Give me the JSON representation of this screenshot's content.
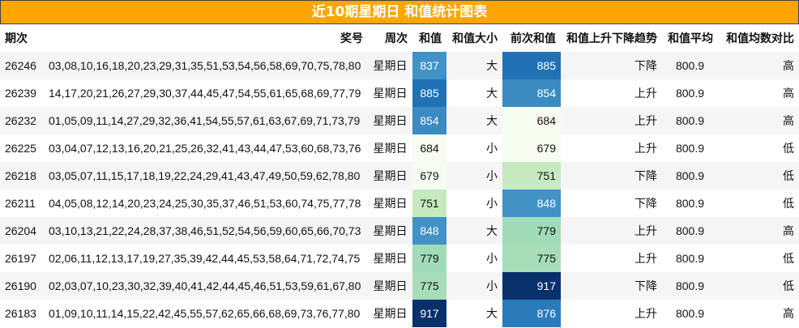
{
  "title": "近10期星期日 和值统计图表",
  "columns": [
    "期次",
    "奖号",
    "周次",
    "和值",
    "和值大小",
    "前次和值",
    "和值上升下降趋势",
    "和值平均",
    "和值均数对比"
  ],
  "rows": [
    {
      "issue": "26246",
      "numbers": "03,08,10,16,18,20,23,29,31,35,51,53,54,56,58,69,70,75,78,80",
      "weekday": "星期日",
      "sum": "837",
      "sum_color": "#4292c6",
      "sum_text_color": "#ffffff",
      "size": "大",
      "prev_sum": "885",
      "prev_color": "#2171b5",
      "prev_text_color": "#ffffff",
      "trend": "下降",
      "avg": "800.9",
      "compare": "高"
    },
    {
      "issue": "26239",
      "numbers": "14,17,20,21,26,27,29,30,37,44,45,47,54,55,61,65,68,69,77,79",
      "weekday": "星期日",
      "sum": "885",
      "sum_color": "#2171b5",
      "sum_text_color": "#ffffff",
      "size": "大",
      "prev_sum": "854",
      "prev_color": "#3b8bc2",
      "prev_text_color": "#ffffff",
      "trend": "上升",
      "avg": "800.9",
      "compare": "高"
    },
    {
      "issue": "26232",
      "numbers": "01,05,09,11,14,27,29,32,36,41,54,55,57,61,63,67,69,71,73,79",
      "weekday": "星期日",
      "sum": "854",
      "sum_color": "#3b8bc2",
      "sum_text_color": "#ffffff",
      "size": "大",
      "prev_sum": "684",
      "prev_color": "#f7fcf0",
      "prev_text_color": "#111111",
      "trend": "上升",
      "avg": "800.9",
      "compare": "高"
    },
    {
      "issue": "26225",
      "numbers": "03,04,07,12,13,16,20,21,25,26,32,41,43,44,47,53,60,68,73,76",
      "weekday": "星期日",
      "sum": "684",
      "sum_color": "#f7fcf0",
      "sum_text_color": "#111111",
      "size": "小",
      "prev_sum": "679",
      "prev_color": "#f7fcf0",
      "prev_text_color": "#111111",
      "trend": "上升",
      "avg": "800.9",
      "compare": "低"
    },
    {
      "issue": "26218",
      "numbers": "03,05,07,11,15,17,18,19,22,24,29,41,43,47,49,50,59,62,78,80",
      "weekday": "星期日",
      "sum": "679",
      "sum_color": "#f7fcf0",
      "sum_text_color": "#111111",
      "size": "小",
      "prev_sum": "751",
      "prev_color": "#c7e9c0",
      "prev_text_color": "#111111",
      "trend": "下降",
      "avg": "800.9",
      "compare": "低"
    },
    {
      "issue": "26211",
      "numbers": "04,05,08,12,14,20,23,24,25,30,35,37,46,51,53,60,74,75,77,78",
      "weekday": "星期日",
      "sum": "751",
      "sum_color": "#c7e9c0",
      "sum_text_color": "#111111",
      "size": "小",
      "prev_sum": "848",
      "prev_color": "#4292c6",
      "prev_text_color": "#ffffff",
      "trend": "下降",
      "avg": "800.9",
      "compare": "低"
    },
    {
      "issue": "26204",
      "numbers": "03,10,13,21,22,24,28,37,38,46,51,52,54,56,59,60,65,66,70,73",
      "weekday": "星期日",
      "sum": "848",
      "sum_color": "#4292c6",
      "sum_text_color": "#ffffff",
      "size": "大",
      "prev_sum": "779",
      "prev_color": "#a1dbb8",
      "prev_text_color": "#111111",
      "trend": "上升",
      "avg": "800.9",
      "compare": "高"
    },
    {
      "issue": "26197",
      "numbers": "02,06,11,12,13,17,19,27,35,39,42,44,45,53,58,64,71,72,74,75",
      "weekday": "星期日",
      "sum": "779",
      "sum_color": "#a1dbb8",
      "sum_text_color": "#111111",
      "size": "小",
      "prev_sum": "775",
      "prev_color": "#a8ddba",
      "prev_text_color": "#111111",
      "trend": "上升",
      "avg": "800.9",
      "compare": "低"
    },
    {
      "issue": "26190",
      "numbers": "02,03,07,10,23,30,32,39,40,41,42,44,45,46,51,53,59,61,67,80",
      "weekday": "星期日",
      "sum": "775",
      "sum_color": "#a8ddba",
      "sum_text_color": "#111111",
      "size": "小",
      "prev_sum": "917",
      "prev_color": "#08306b",
      "prev_text_color": "#ffffff",
      "trend": "下降",
      "avg": "800.9",
      "compare": "低"
    },
    {
      "issue": "26183",
      "numbers": "01,09,10,11,14,15,22,42,45,55,57,62,65,66,68,69,73,76,77,80",
      "weekday": "星期日",
      "sum": "917",
      "sum_color": "#08306b",
      "sum_text_color": "#ffffff",
      "size": "大",
      "prev_sum": "876",
      "prev_color": "#2b7bba",
      "prev_text_color": "#ffffff",
      "trend": "上升",
      "avg": "800.9",
      "compare": "高"
    }
  ]
}
